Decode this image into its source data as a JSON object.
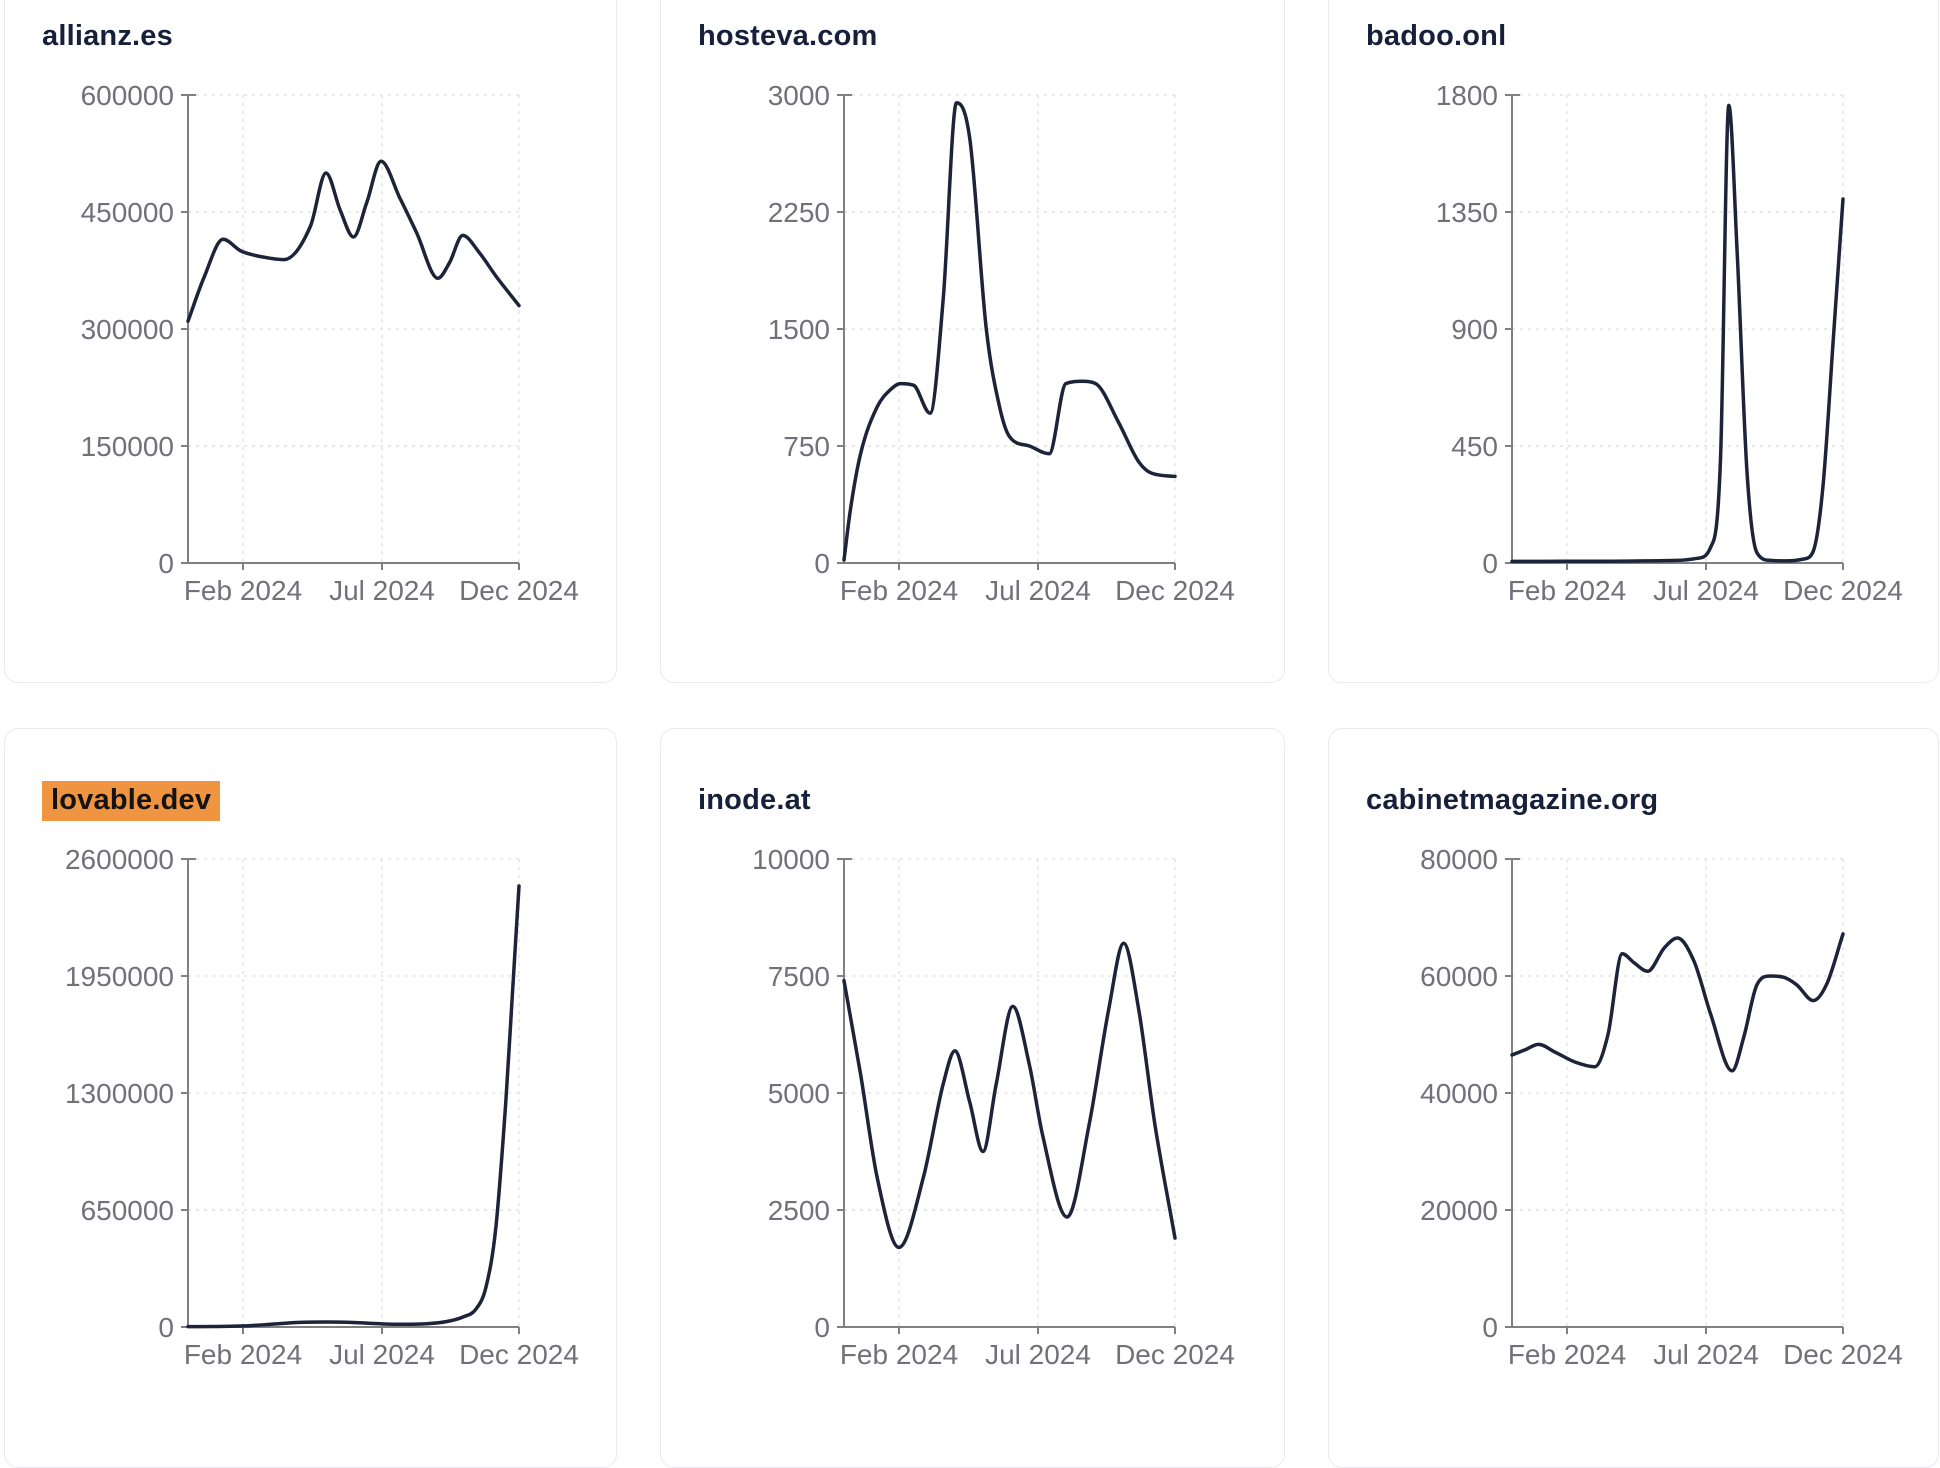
{
  "page": {
    "background": "#ffffff"
  },
  "colors": {
    "line": "#1d2339",
    "axis": "#808080",
    "tick_label": "#71717a",
    "grid": "#e3e3e8",
    "card_border": "#e9eaf1",
    "title": "#16203a",
    "highlight_bg": "#ef9440",
    "highlight_text": "#131313"
  },
  "chart_data": [
    {
      "type": "line",
      "title": "allianz.es",
      "highlighted": false,
      "x_ticks": [
        "Feb 2024",
        "Jul 2024",
        "Dec 2024"
      ],
      "x_range": [
        "Jan 2024",
        "Dec 2024"
      ],
      "y_ticks": [
        0,
        150000,
        300000,
        450000,
        600000
      ],
      "y_max": 600000,
      "grid": true,
      "points": [
        [
          0,
          310000
        ],
        [
          0.05,
          368000
        ],
        [
          0.106,
          415000
        ],
        [
          0.16,
          400000
        ],
        [
          0.23,
          392000
        ],
        [
          0.29,
          389000
        ],
        [
          0.37,
          432000
        ],
        [
          0.417,
          500000
        ],
        [
          0.46,
          452000
        ],
        [
          0.5,
          418000
        ],
        [
          0.54,
          462000
        ],
        [
          0.583,
          515000
        ],
        [
          0.64,
          468000
        ],
        [
          0.69,
          424000
        ],
        [
          0.755,
          365000
        ],
        [
          0.79,
          385000
        ],
        [
          0.83,
          420000
        ],
        [
          0.88,
          398000
        ],
        [
          0.93,
          368000
        ],
        [
          1,
          330000
        ]
      ]
    },
    {
      "type": "line",
      "title": "hosteva.com",
      "highlighted": false,
      "x_ticks": [
        "Feb 2024",
        "Jul 2024",
        "Dec 2024"
      ],
      "x_range": [
        "Jan 2024",
        "Dec 2024"
      ],
      "y_ticks": [
        0,
        750,
        1500,
        2250,
        3000
      ],
      "y_max": 3000,
      "grid": true,
      "points": [
        [
          0,
          20
        ],
        [
          0.02,
          350
        ],
        [
          0.05,
          700
        ],
        [
          0.1,
          1000
        ],
        [
          0.14,
          1110
        ],
        [
          0.17,
          1150
        ],
        [
          0.21,
          1140
        ],
        [
          0.26,
          960
        ],
        [
          0.3,
          1700
        ],
        [
          0.34,
          2950
        ],
        [
          0.38,
          2720
        ],
        [
          0.43,
          1500
        ],
        [
          0.47,
          1000
        ],
        [
          0.5,
          810
        ],
        [
          0.56,
          750
        ],
        [
          0.62,
          700
        ],
        [
          0.67,
          1150
        ],
        [
          0.72,
          1165
        ],
        [
          0.76,
          1150
        ],
        [
          0.83,
          900
        ],
        [
          0.89,
          650
        ],
        [
          0.93,
          575
        ],
        [
          1,
          555
        ]
      ]
    },
    {
      "type": "line",
      "title": "badoo.onl",
      "highlighted": false,
      "x_ticks": [
        "Feb 2024",
        "Jul 2024",
        "Dec 2024"
      ],
      "x_range": [
        "Jan 2024",
        "Dec 2024"
      ],
      "y_ticks": [
        0,
        450,
        900,
        1350,
        1800
      ],
      "y_max": 1800,
      "grid": true,
      "points": [
        [
          0,
          6
        ],
        [
          0.1,
          6
        ],
        [
          0.2,
          7
        ],
        [
          0.3,
          7
        ],
        [
          0.4,
          8
        ],
        [
          0.5,
          10
        ],
        [
          0.56,
          18
        ],
        [
          0.6,
          60
        ],
        [
          0.63,
          400
        ],
        [
          0.655,
          1760
        ],
        [
          0.68,
          1200
        ],
        [
          0.71,
          350
        ],
        [
          0.74,
          40
        ],
        [
          0.78,
          10
        ],
        [
          0.83,
          8
        ],
        [
          0.88,
          15
        ],
        [
          0.91,
          45
        ],
        [
          0.94,
          300
        ],
        [
          0.97,
          850
        ],
        [
          1,
          1400
        ]
      ]
    },
    {
      "type": "line",
      "title": "lovable.dev",
      "highlighted": true,
      "x_ticks": [
        "Feb 2024",
        "Jul 2024",
        "Dec 2024"
      ],
      "x_range": [
        "Jan 2024",
        "Dec 2024"
      ],
      "y_ticks": [
        0,
        650000,
        1300000,
        1950000,
        2600000
      ],
      "y_max": 2600000,
      "grid": true,
      "points": [
        [
          0,
          2000
        ],
        [
          0.08,
          3000
        ],
        [
          0.17,
          6000
        ],
        [
          0.25,
          15000
        ],
        [
          0.33,
          25000
        ],
        [
          0.42,
          28000
        ],
        [
          0.5,
          25000
        ],
        [
          0.58,
          18000
        ],
        [
          0.66,
          15000
        ],
        [
          0.72,
          18000
        ],
        [
          0.78,
          30000
        ],
        [
          0.83,
          55000
        ],
        [
          0.87,
          100000
        ],
        [
          0.9,
          220000
        ],
        [
          0.93,
          550000
        ],
        [
          0.96,
          1250000
        ],
        [
          0.98,
          1850000
        ],
        [
          1,
          2450000
        ]
      ]
    },
    {
      "type": "line",
      "title": "inode.at",
      "highlighted": false,
      "x_ticks": [
        "Feb 2024",
        "Jul 2024",
        "Dec 2024"
      ],
      "x_range": [
        "Jan 2024",
        "Dec 2024"
      ],
      "y_ticks": [
        0,
        2500,
        5000,
        7500,
        10000
      ],
      "y_max": 10000,
      "grid": true,
      "points": [
        [
          0,
          7400
        ],
        [
          0.05,
          5400
        ],
        [
          0.1,
          3200
        ],
        [
          0.166,
          1700
        ],
        [
          0.24,
          3200
        ],
        [
          0.3,
          5200
        ],
        [
          0.335,
          5900
        ],
        [
          0.38,
          4800
        ],
        [
          0.42,
          3750
        ],
        [
          0.46,
          5200
        ],
        [
          0.51,
          6850
        ],
        [
          0.56,
          5600
        ],
        [
          0.6,
          4100
        ],
        [
          0.674,
          2350
        ],
        [
          0.74,
          4300
        ],
        [
          0.8,
          6800
        ],
        [
          0.845,
          8200
        ],
        [
          0.89,
          6800
        ],
        [
          0.94,
          4300
        ],
        [
          1,
          1900
        ]
      ]
    },
    {
      "type": "line",
      "title": "cabinetmagazine.org",
      "highlighted": false,
      "x_ticks": [
        "Feb 2024",
        "Jul 2024",
        "Dec 2024"
      ],
      "x_range": [
        "Jan 2024",
        "Dec 2024"
      ],
      "y_ticks": [
        0,
        20000,
        40000,
        60000,
        80000
      ],
      "y_max": 80000,
      "grid": true,
      "points": [
        [
          0,
          46500
        ],
        [
          0.04,
          47400
        ],
        [
          0.08,
          48300
        ],
        [
          0.13,
          47000
        ],
        [
          0.19,
          45300
        ],
        [
          0.25,
          44500
        ],
        [
          0.29,
          50000
        ],
        [
          0.333,
          63800
        ],
        [
          0.37,
          62200
        ],
        [
          0.41,
          60800
        ],
        [
          0.46,
          64800
        ],
        [
          0.5,
          66500
        ],
        [
          0.55,
          62500
        ],
        [
          0.6,
          53500
        ],
        [
          0.665,
          43800
        ],
        [
          0.7,
          49500
        ],
        [
          0.74,
          58500
        ],
        [
          0.78,
          60000
        ],
        [
          0.82,
          59800
        ],
        [
          0.86,
          58500
        ],
        [
          0.91,
          55800
        ],
        [
          0.95,
          58500
        ],
        [
          1,
          67200
        ]
      ]
    }
  ]
}
